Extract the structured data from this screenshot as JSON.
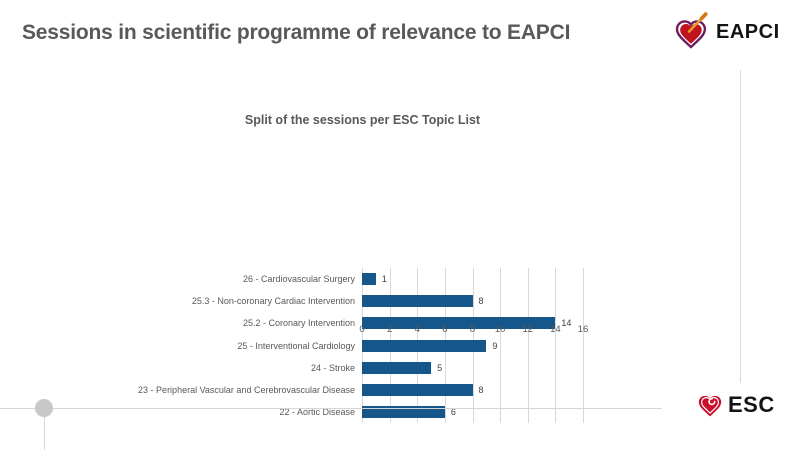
{
  "slide": {
    "title": "Sessions in scientific programme of relevance to EAPCI"
  },
  "header": {
    "eapci_logo_text": "EAPCI"
  },
  "footer": {
    "esc_logo_text": "ESC"
  },
  "chart_data": {
    "type": "bar",
    "orientation": "horizontal",
    "title": "Split of the sessions per ESC Topic List",
    "categories": [
      "26 - Cardiovascular Surgery",
      "25.3 - Non-coronary Cardiac Intervention",
      "25.2 - Coronary Intervention",
      "25 - Interventional Cardiology",
      "24 - Stroke",
      "23 - Peripheral Vascular and Cerebrovascular Disease",
      "22 - Aortic Disease"
    ],
    "values": [
      1,
      8,
      14,
      9,
      5,
      8,
      6
    ],
    "xlim": [
      0,
      16
    ],
    "xticks": [
      0,
      2,
      4,
      6,
      8,
      10,
      12,
      14,
      16
    ],
    "grid": true,
    "data_labels": true,
    "legend": "none",
    "colors": {
      "bar": "#15578b",
      "gridline": "#d9d9d9",
      "category_label": "#595959",
      "data_label": "#404040",
      "title": "#595959"
    }
  },
  "theme": {
    "title_color": "#595959",
    "heart_red": "#c1121f",
    "esc_red": "#c8102e",
    "eapci_purple": "#6e1a5f",
    "needle_orange": "#e89c28",
    "line_gray": "#d6d6d6"
  }
}
